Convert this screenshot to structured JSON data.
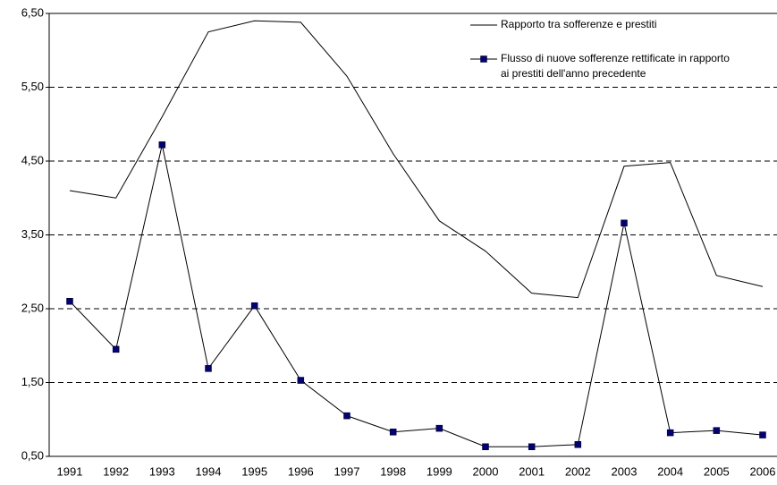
{
  "chart_data": {
    "type": "line",
    "categories": [
      "1991",
      "1992",
      "1993",
      "1994",
      "1995",
      "1996",
      "1997",
      "1998",
      "1999",
      "2000",
      "2001",
      "2002",
      "2003",
      "2004",
      "2005",
      "2006"
    ],
    "series": [
      {
        "name": "Rapporto tra sofferenze e prestiti",
        "color": "#000000",
        "marker": false,
        "values": [
          4.1,
          4.0,
          5.1,
          6.25,
          6.4,
          6.38,
          5.65,
          4.6,
          3.69,
          3.28,
          2.71,
          2.65,
          4.43,
          4.48,
          2.95,
          2.8
        ]
      },
      {
        "name": "Flusso di nuove sofferenze rettificate in rapporto ai prestiti dell'anno precedente",
        "color": "#000080",
        "marker": true,
        "values": [
          2.6,
          1.95,
          4.72,
          1.69,
          2.54,
          1.53,
          1.05,
          0.83,
          0.88,
          0.63,
          0.63,
          0.66,
          3.66,
          0.82,
          0.85,
          0.79
        ]
      }
    ],
    "ylim": [
      0.5,
      6.5
    ],
    "yticks": [
      {
        "value": 0.5,
        "label": "0,50"
      },
      {
        "value": 1.5,
        "label": "1,50"
      },
      {
        "value": 2.5,
        "label": "2,50"
      },
      {
        "value": 3.5,
        "label": "3,50"
      },
      {
        "value": 4.5,
        "label": "4,50"
      },
      {
        "value": 5.5,
        "label": "5,50"
      },
      {
        "value": 6.5,
        "label": "6,50"
      }
    ],
    "grid": true
  }
}
